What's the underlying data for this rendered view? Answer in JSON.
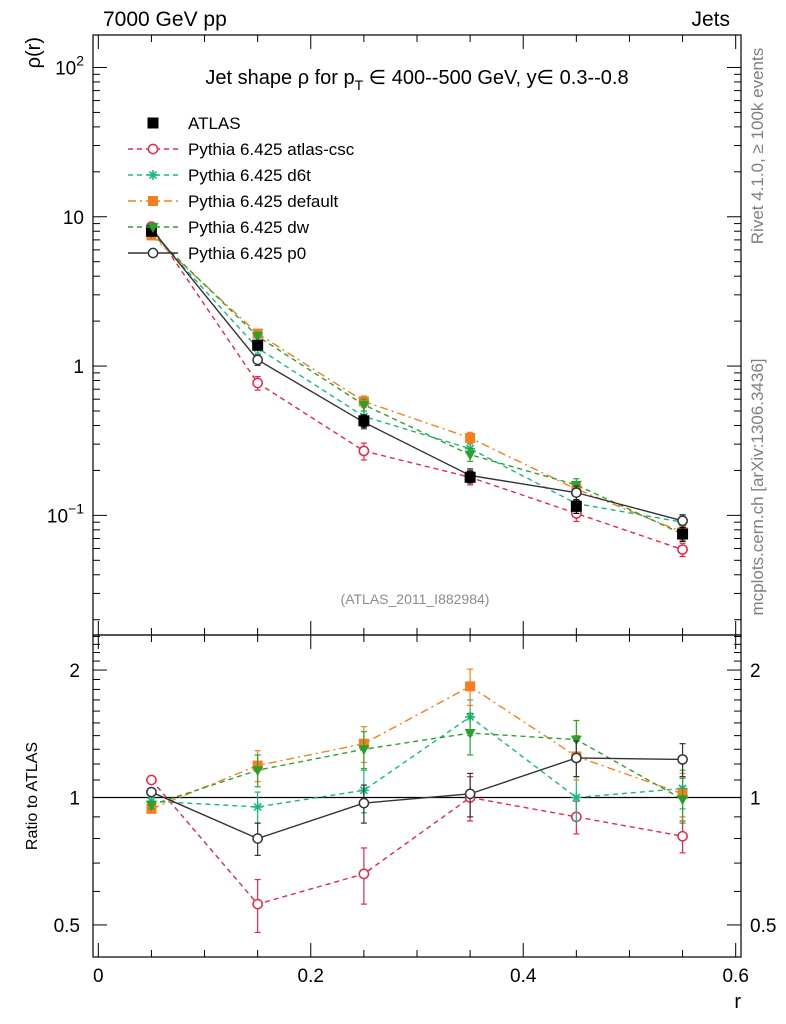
{
  "header": {
    "left": "7000 GeV pp",
    "right": "Jets"
  },
  "side_labels": {
    "rivet": "Rivet 4.1.0, ≥ 100k events",
    "mcplots": "mcplots.cern.ch [arXiv:1306.3436]"
  },
  "reference": "(ATLAS_2011_I882984)",
  "chart_data": [
    {
      "type": "line",
      "title": "Jet shape ρ for p_T ∈ 400--500 GeV, y∈ 0.3--0.8",
      "title_parts": {
        "pre": "Jet shape ρ for p",
        "sub": "T",
        "post": " ∈ 400--500 GeV, y∈ 0.3--0.8"
      },
      "ylabel": "ρ(r)",
      "xlabel": "r",
      "yscale": "log",
      "xlim": [
        -0.005,
        0.605
      ],
      "ylim": [
        0.0158,
        165
      ],
      "x": [
        0.05,
        0.15,
        0.25,
        0.35,
        0.45,
        0.55
      ],
      "yticks": [
        {
          "value": 0.1,
          "base": "10",
          "exp": "−1"
        },
        {
          "value": 1,
          "base": "1",
          "exp": ""
        },
        {
          "value": 10,
          "base": "10",
          "exp": ""
        },
        {
          "value": 100,
          "base": "10",
          "exp": "2"
        }
      ],
      "legend_position": "top-left",
      "series": [
        {
          "name": "ATLAS",
          "color": "#000000",
          "marker": "square",
          "line": "none",
          "values": [
            8.0,
            1.38,
            0.43,
            0.18,
            0.115,
            0.075
          ],
          "errors": [
            0.4,
            0.1,
            0.04,
            0.015,
            0.012,
            0.008
          ]
        },
        {
          "name": "Pythia 6.425 atlas-csc",
          "color": "#e8264a",
          "marker": "open-circle",
          "line": "dashed",
          "values": [
            8.6,
            0.77,
            0.27,
            0.18,
            0.103,
            0.059
          ],
          "errors": [
            0.3,
            0.08,
            0.035,
            0.02,
            0.012,
            0.006
          ]
        },
        {
          "name": "Pythia 6.425 d6t",
          "color": "#1ab77f",
          "marker": "star",
          "line": "dashed",
          "values": [
            7.9,
            1.32,
            0.46,
            0.28,
            0.12,
            0.09
          ],
          "errors": [
            0.3,
            0.1,
            0.04,
            0.025,
            0.014,
            0.009
          ]
        },
        {
          "name": "Pythia 6.425 default",
          "color": "#f57f20",
          "marker": "filled-square",
          "line": "dashdot",
          "values": [
            7.5,
            1.65,
            0.58,
            0.33,
            0.15,
            0.077
          ],
          "errors": [
            0.3,
            0.11,
            0.05,
            0.03,
            0.016,
            0.008
          ]
        },
        {
          "name": "Pythia 6.425 dw",
          "color": "#2ca02c",
          "marker": "filled-triangle-down",
          "line": "dashed",
          "values": [
            7.8,
            1.58,
            0.55,
            0.255,
            0.16,
            0.075
          ],
          "errors": [
            0.3,
            0.11,
            0.05,
            0.025,
            0.016,
            0.008
          ]
        },
        {
          "name": "Pythia 6.425 p0",
          "color": "#333333",
          "marker": "open-circle",
          "line": "solid",
          "values": [
            8.3,
            1.1,
            0.42,
            0.185,
            0.142,
            0.092
          ],
          "errors": [
            0.3,
            0.09,
            0.04,
            0.02,
            0.015,
            0.009
          ]
        }
      ]
    },
    {
      "type": "line",
      "ylabel": "Ratio to ATLAS",
      "xlabel": "r",
      "yscale": "log",
      "xlim": [
        -0.005,
        0.605
      ],
      "ylim": [
        0.42,
        2.42
      ],
      "x": [
        0.05,
        0.15,
        0.25,
        0.35,
        0.45,
        0.55
      ],
      "xticks": [
        "0",
        "0.2",
        "0.4",
        "0.6"
      ],
      "xtick_values": [
        0,
        0.2,
        0.4,
        0.6
      ],
      "yticks": [
        {
          "value": 0.5,
          "label": "0.5"
        },
        {
          "value": 1,
          "label": "1"
        },
        {
          "value": 2,
          "label": "2"
        }
      ],
      "reference_line": 1,
      "series": [
        {
          "name": "Pythia 6.425 atlas-csc",
          "color": "#e8264a",
          "marker": "open-circle",
          "line": "dashed",
          "values": [
            1.1,
            0.56,
            0.66,
            1.0,
            0.9,
            0.81
          ],
          "errors": [
            0.02,
            0.08,
            0.1,
            0.12,
            0.08,
            0.07
          ]
        },
        {
          "name": "Pythia 6.425 d6t",
          "color": "#1ab77f",
          "marker": "star",
          "line": "dashed",
          "values": [
            0.98,
            0.95,
            1.04,
            1.55,
            1.0,
            1.05
          ],
          "errors": [
            0.02,
            0.08,
            0.12,
            0.15,
            0.12,
            0.11
          ]
        },
        {
          "name": "Pythia 6.425 default",
          "color": "#f57f20",
          "marker": "filled-square",
          "line": "dashdot",
          "values": [
            0.94,
            1.19,
            1.34,
            1.83,
            1.25,
            1.02
          ],
          "errors": [
            0.02,
            0.1,
            0.13,
            0.18,
            0.15,
            0.12
          ]
        },
        {
          "name": "Pythia 6.425 dw",
          "color": "#2ca02c",
          "marker": "filled-triangle-down",
          "line": "dashed",
          "values": [
            0.96,
            1.16,
            1.3,
            1.42,
            1.37,
            0.99
          ],
          "errors": [
            0.02,
            0.1,
            0.13,
            0.16,
            0.15,
            0.12
          ]
        },
        {
          "name": "Pythia 6.425 p0",
          "color": "#333333",
          "marker": "open-circle",
          "line": "solid",
          "values": [
            1.03,
            0.8,
            0.97,
            1.02,
            1.24,
            1.23
          ],
          "errors": [
            0.02,
            0.07,
            0.1,
            0.12,
            0.12,
            0.11
          ]
        }
      ]
    }
  ]
}
